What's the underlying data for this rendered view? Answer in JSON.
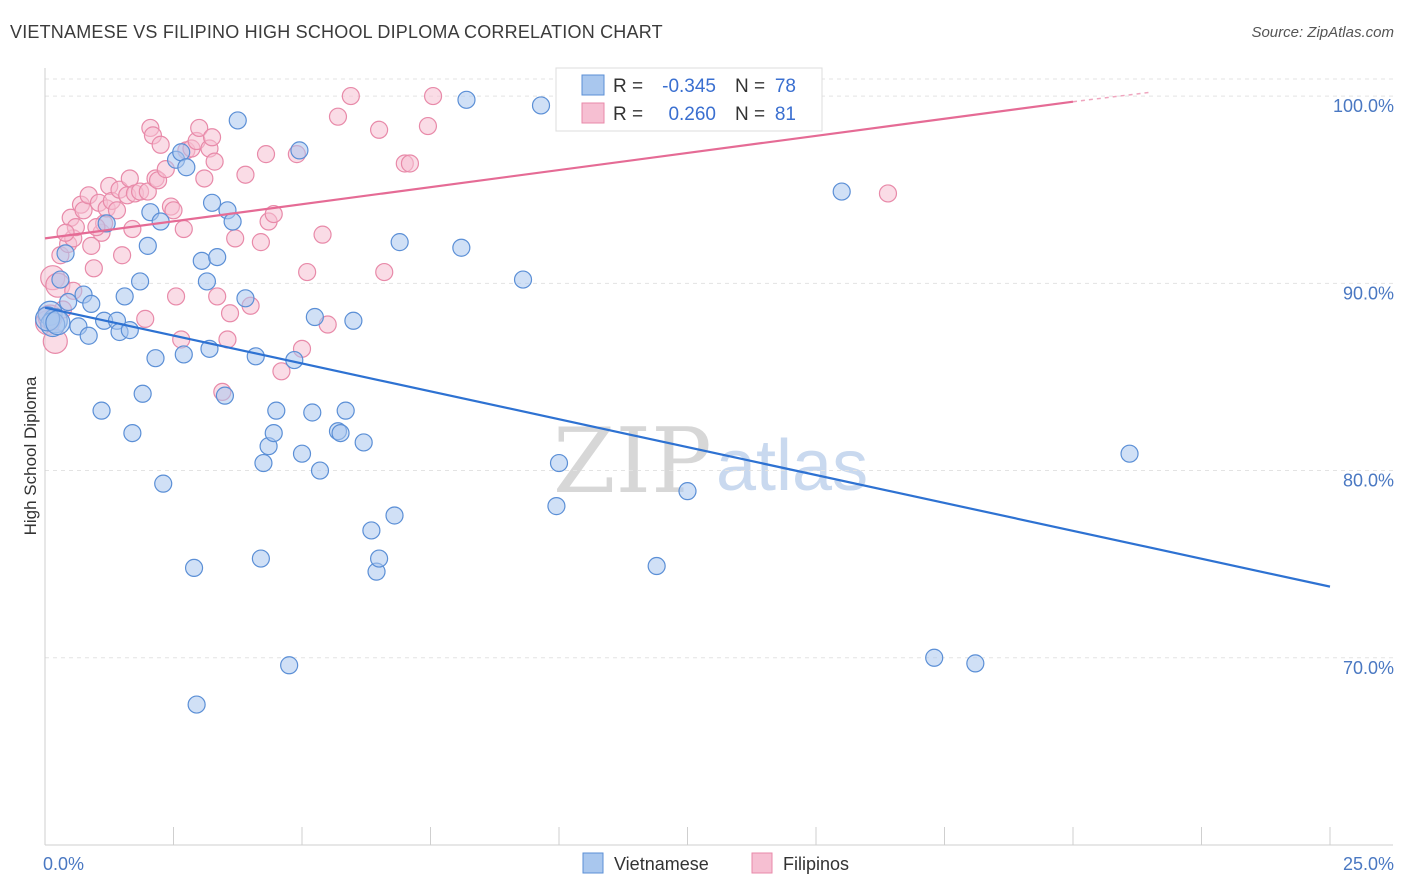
{
  "title": "VIETNAMESE VS FILIPINO HIGH SCHOOL DIPLOMA CORRELATION CHART",
  "source": "Source: ZipAtlas.com",
  "watermark": {
    "zip": "ZIP",
    "atlas": "atlas"
  },
  "colors": {
    "blue_fill": "#a9c7ee",
    "blue_stroke": "#5b8fd6",
    "blue_line": "#2e72d2",
    "pink_fill": "#f6bfd2",
    "pink_stroke": "#e88aa9",
    "pink_line": "#e56b95",
    "grid": "#e3e3e3",
    "tick_text": "#4a78c2"
  },
  "legend": {
    "rows": [
      {
        "r_label": "R =",
        "r_value": "-0.345",
        "n_label": "N =",
        "n_value": "78"
      },
      {
        "r_label": "R =",
        "r_value": "0.260",
        "n_label": "N =",
        "n_value": "81"
      }
    ]
  },
  "bottom_legend": {
    "items": [
      "Vietnamese",
      "Filipinos"
    ]
  },
  "chart_data": {
    "type": "scatter",
    "title": "VIETNAMESE VS FILIPINO HIGH SCHOOL DIPLOMA CORRELATION CHART",
    "xlabel": "",
    "ylabel": "High School Diploma",
    "xlim": [
      0,
      25
    ],
    "ylim": [
      60,
      101.5
    ],
    "x_tick_labels": [
      "0.0%",
      "25.0%"
    ],
    "y_ticks": [
      70,
      80,
      90,
      100
    ],
    "y_tick_labels": [
      "70.0%",
      "80.0%",
      "90.0%",
      "100.0%"
    ],
    "grid": true,
    "series": [
      {
        "name": "Vietnamese",
        "r": -0.345,
        "n": 78,
        "trend": {
          "x": [
            0,
            25
          ],
          "y": [
            88.7,
            73.8
          ]
        },
        "points": [
          [
            0.1,
            88.4
          ],
          [
            0.2,
            88.0
          ],
          [
            0.15,
            87.8
          ],
          [
            0.3,
            90.2
          ],
          [
            0.4,
            91.6
          ],
          [
            0.45,
            89.0
          ],
          [
            0.65,
            87.7
          ],
          [
            0.75,
            89.4
          ],
          [
            0.85,
            87.2
          ],
          [
            0.9,
            88.9
          ],
          [
            1.1,
            83.2
          ],
          [
            1.15,
            88.0
          ],
          [
            1.2,
            93.2
          ],
          [
            1.4,
            88.0
          ],
          [
            1.45,
            87.4
          ],
          [
            1.55,
            89.3
          ],
          [
            1.65,
            87.5
          ],
          [
            1.7,
            82.0
          ],
          [
            1.85,
            90.1
          ],
          [
            1.9,
            84.1
          ],
          [
            2.0,
            92.0
          ],
          [
            2.05,
            93.8
          ],
          [
            2.15,
            86.0
          ],
          [
            2.25,
            93.3
          ],
          [
            2.3,
            79.3
          ],
          [
            2.55,
            96.6
          ],
          [
            2.65,
            97.0
          ],
          [
            2.7,
            86.2
          ],
          [
            2.75,
            96.2
          ],
          [
            2.9,
            74.8
          ],
          [
            2.95,
            67.5
          ],
          [
            3.05,
            91.2
          ],
          [
            3.15,
            90.1
          ],
          [
            3.2,
            86.5
          ],
          [
            3.25,
            94.3
          ],
          [
            3.35,
            91.4
          ],
          [
            3.5,
            84.0
          ],
          [
            3.55,
            93.9
          ],
          [
            3.65,
            93.3
          ],
          [
            3.75,
            98.7
          ],
          [
            3.9,
            89.2
          ],
          [
            4.1,
            86.1
          ],
          [
            4.2,
            75.3
          ],
          [
            4.25,
            80.4
          ],
          [
            4.35,
            81.3
          ],
          [
            4.45,
            82.0
          ],
          [
            4.5,
            83.2
          ],
          [
            4.75,
            69.6
          ],
          [
            4.85,
            85.9
          ],
          [
            4.95,
            97.1
          ],
          [
            5.0,
            80.9
          ],
          [
            5.2,
            83.1
          ],
          [
            5.25,
            88.2
          ],
          [
            5.35,
            80.0
          ],
          [
            5.7,
            82.1
          ],
          [
            5.75,
            82.0
          ],
          [
            5.85,
            83.2
          ],
          [
            6.0,
            88.0
          ],
          [
            6.2,
            81.5
          ],
          [
            6.35,
            76.8
          ],
          [
            6.45,
            74.6
          ],
          [
            6.5,
            75.3
          ],
          [
            6.8,
            77.6
          ],
          [
            6.9,
            92.2
          ],
          [
            8.1,
            91.9
          ],
          [
            8.2,
            99.8
          ],
          [
            9.3,
            90.2
          ],
          [
            9.65,
            99.5
          ],
          [
            10.0,
            80.4
          ],
          [
            9.95,
            78.1
          ],
          [
            11.9,
            74.9
          ],
          [
            12.5,
            78.9
          ],
          [
            15.5,
            94.9
          ],
          [
            17.3,
            70.0
          ],
          [
            18.1,
            69.7
          ],
          [
            21.1,
            80.9
          ],
          [
            0.05,
            88.1
          ],
          [
            0.25,
            87.9
          ]
        ]
      },
      {
        "name": "Filipinos",
        "r": 0.26,
        "n": 81,
        "trend": {
          "x": [
            0,
            20
          ],
          "y": [
            92.4,
            99.7
          ]
        },
        "trend_dashed": {
          "x": [
            20,
            21.5
          ],
          "y": [
            99.7,
            100.2
          ]
        },
        "points": [
          [
            0.05,
            87.9
          ],
          [
            0.1,
            88.2
          ],
          [
            0.15,
            90.3
          ],
          [
            0.2,
            86.9
          ],
          [
            0.3,
            91.5
          ],
          [
            0.35,
            88.6
          ],
          [
            0.45,
            92.1
          ],
          [
            0.5,
            93.5
          ],
          [
            0.55,
            92.4
          ],
          [
            0.6,
            93.0
          ],
          [
            0.7,
            94.2
          ],
          [
            0.75,
            93.9
          ],
          [
            0.85,
            94.7
          ],
          [
            0.9,
            92.0
          ],
          [
            0.95,
            90.8
          ],
          [
            1.05,
            94.3
          ],
          [
            1.1,
            92.7
          ],
          [
            1.15,
            93.2
          ],
          [
            1.2,
            94.0
          ],
          [
            1.25,
            95.2
          ],
          [
            1.3,
            94.4
          ],
          [
            1.4,
            93.9
          ],
          [
            1.45,
            95.0
          ],
          [
            1.5,
            91.5
          ],
          [
            1.6,
            94.7
          ],
          [
            1.65,
            95.6
          ],
          [
            1.7,
            92.9
          ],
          [
            1.75,
            94.8
          ],
          [
            1.85,
            94.9
          ],
          [
            1.95,
            88.1
          ],
          [
            2.0,
            94.9
          ],
          [
            2.05,
            98.3
          ],
          [
            2.1,
            97.9
          ],
          [
            2.15,
            95.6
          ],
          [
            2.2,
            95.5
          ],
          [
            2.25,
            97.4
          ],
          [
            2.35,
            96.1
          ],
          [
            2.45,
            94.1
          ],
          [
            2.5,
            93.9
          ],
          [
            2.55,
            89.3
          ],
          [
            2.65,
            87.0
          ],
          [
            2.7,
            92.9
          ],
          [
            2.75,
            97.1
          ],
          [
            2.85,
            97.2
          ],
          [
            2.95,
            97.6
          ],
          [
            3.0,
            98.3
          ],
          [
            3.1,
            95.6
          ],
          [
            3.2,
            97.2
          ],
          [
            3.25,
            97.8
          ],
          [
            3.3,
            96.5
          ],
          [
            3.35,
            89.3
          ],
          [
            3.45,
            84.2
          ],
          [
            3.55,
            87.0
          ],
          [
            3.6,
            88.4
          ],
          [
            3.7,
            92.4
          ],
          [
            3.9,
            95.8
          ],
          [
            4.0,
            88.8
          ],
          [
            4.2,
            92.2
          ],
          [
            4.3,
            96.9
          ],
          [
            4.35,
            93.3
          ],
          [
            4.45,
            93.7
          ],
          [
            4.6,
            85.3
          ],
          [
            4.9,
            96.9
          ],
          [
            5.0,
            86.5
          ],
          [
            5.1,
            90.6
          ],
          [
            5.4,
            92.6
          ],
          [
            5.5,
            87.8
          ],
          [
            5.7,
            98.9
          ],
          [
            5.95,
            100.0
          ],
          [
            6.5,
            98.2
          ],
          [
            6.6,
            90.6
          ],
          [
            7.0,
            96.4
          ],
          [
            7.1,
            96.4
          ],
          [
            7.45,
            98.4
          ],
          [
            7.55,
            100.0
          ],
          [
            11.65,
            100.0
          ],
          [
            16.4,
            94.8
          ],
          [
            0.25,
            89.9
          ],
          [
            0.4,
            92.7
          ],
          [
            1.0,
            93.0
          ],
          [
            0.55,
            89.6
          ]
        ]
      }
    ]
  }
}
